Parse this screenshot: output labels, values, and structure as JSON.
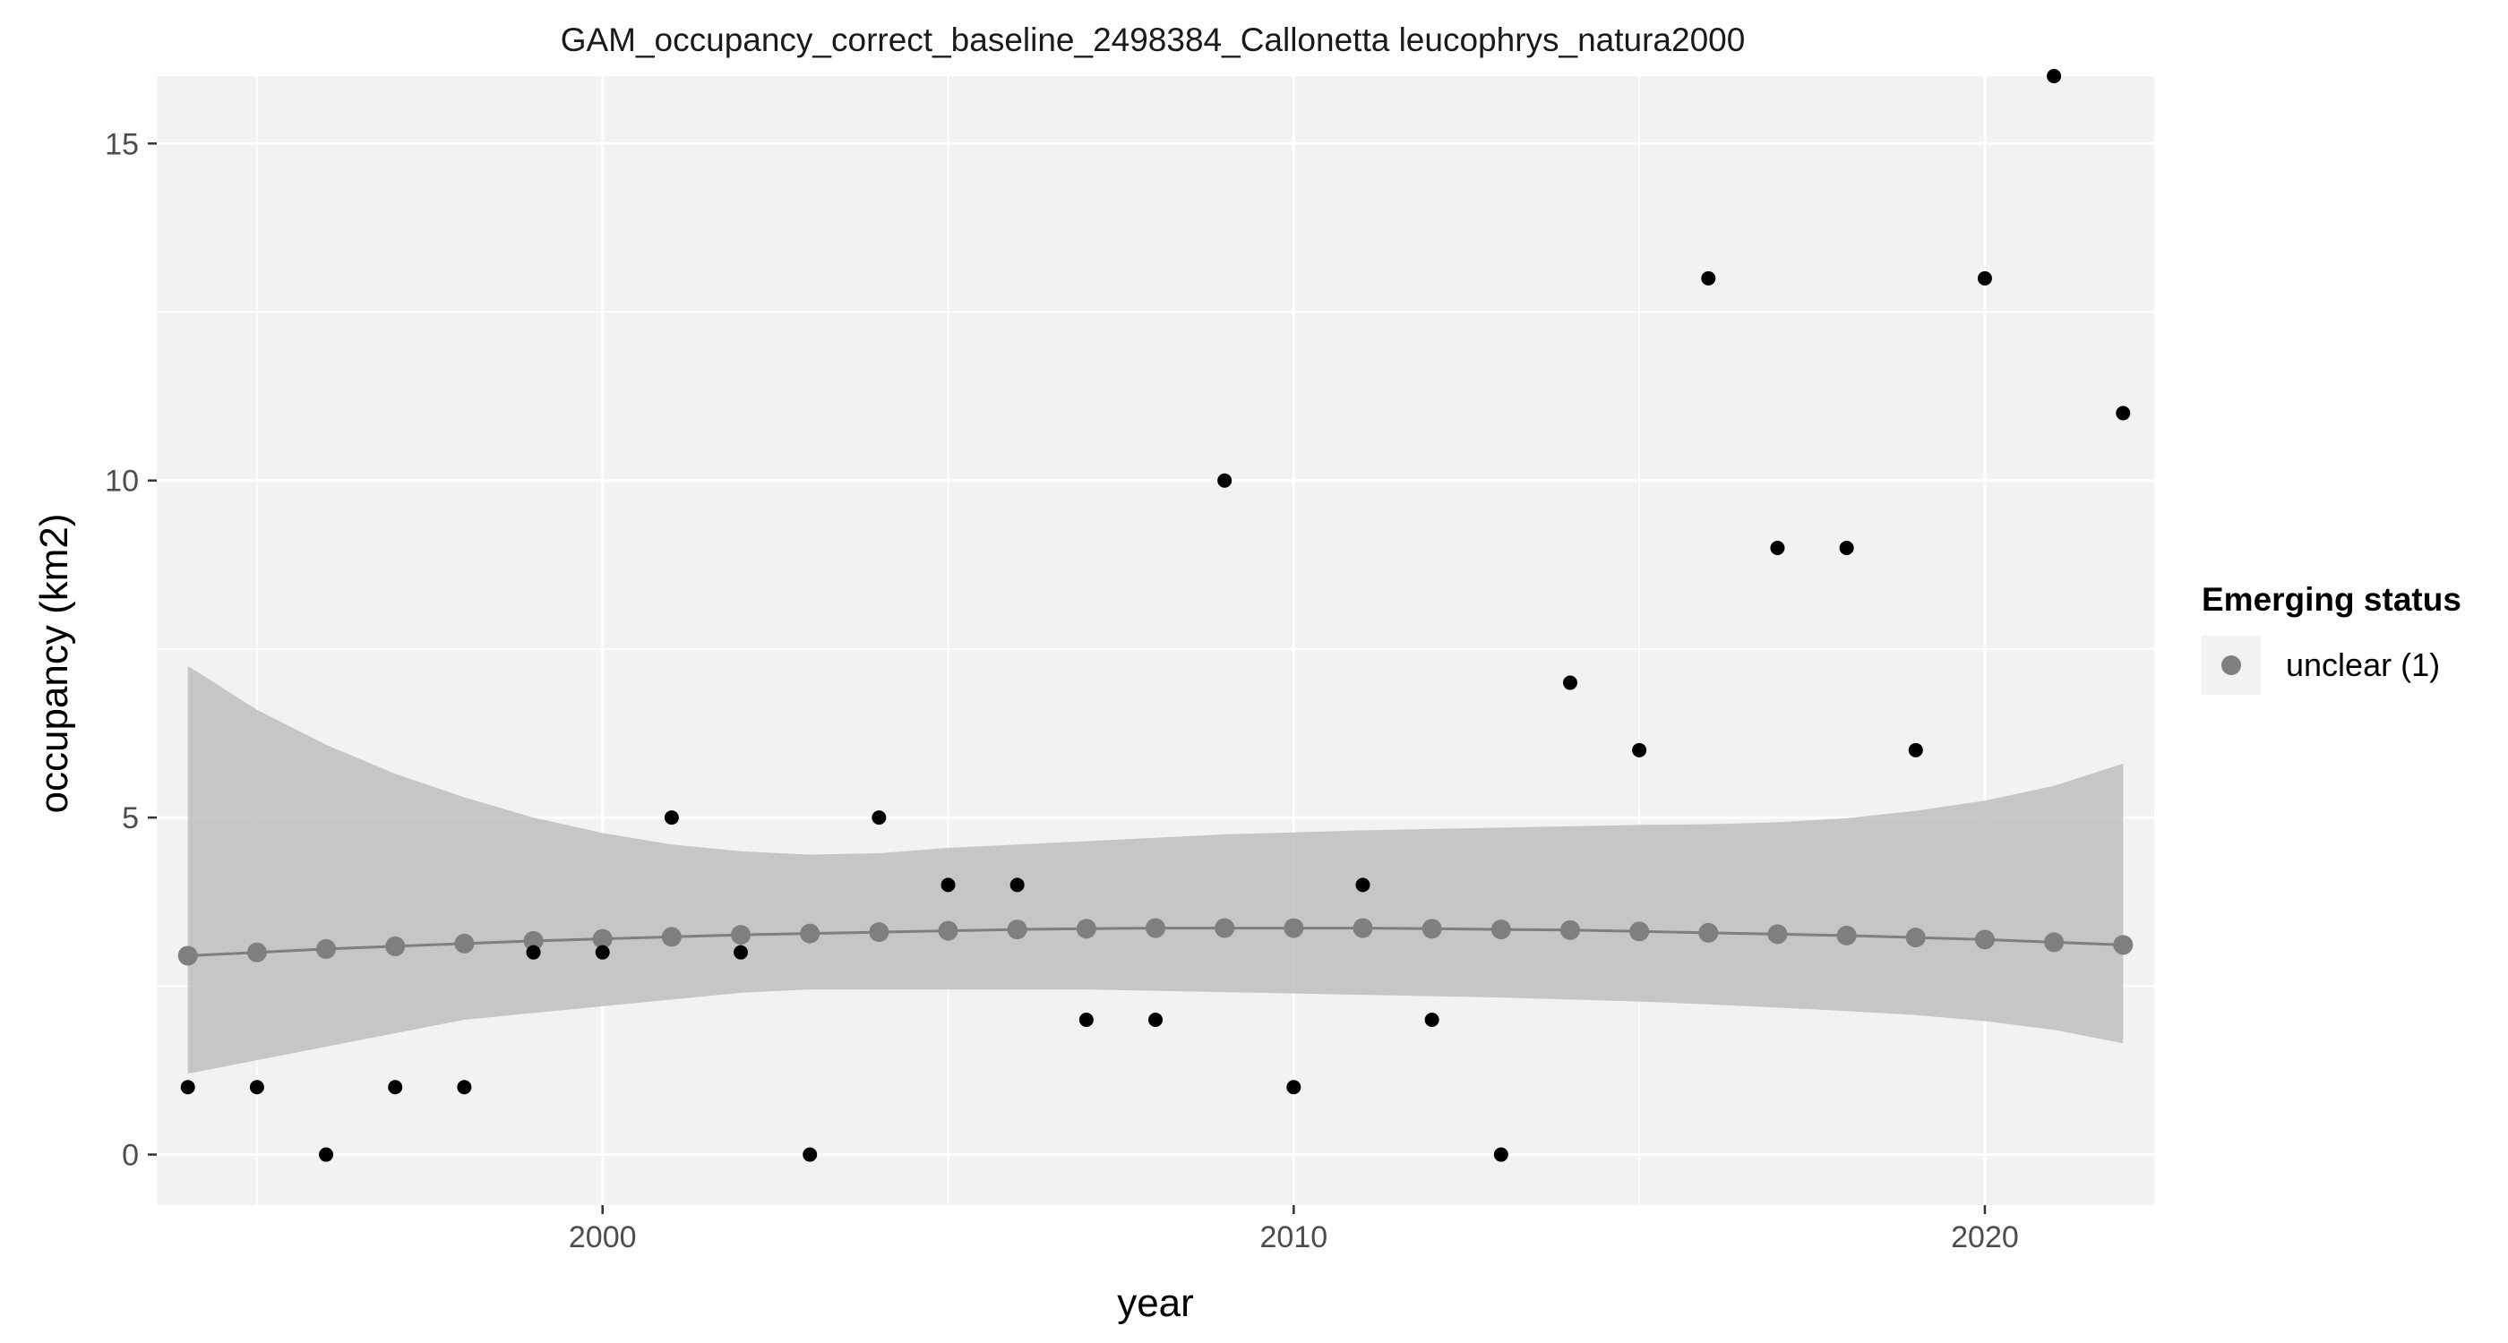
{
  "chart_data": {
    "type": "scatter",
    "title": "GAM_occupancy_correct_baseline_2498384_Callonetta leucophrys_natura2000",
    "xlabel": "year",
    "ylabel": "occupancy (km2)",
    "xlim": [
      1993.55,
      2022.45
    ],
    "ylim": [
      -0.75,
      16.0
    ],
    "x_ticks": [
      2000,
      2010,
      2020
    ],
    "x_tick_labels": [
      "2000",
      "2010",
      "2020"
    ],
    "y_ticks": [
      0,
      5,
      10,
      15
    ],
    "y_tick_labels": [
      "0",
      "5",
      "10",
      "15"
    ],
    "grid": true,
    "series": [
      {
        "name": "observed",
        "x": [
          1994,
          1995,
          1996,
          1997,
          1998,
          1999,
          2000,
          2001,
          2002,
          2003,
          2004,
          2005,
          2006,
          2007,
          2008,
          2009,
          2010,
          2011,
          2012,
          2013,
          2014,
          2015,
          2016,
          2017,
          2018,
          2019,
          2020,
          2021,
          2022
        ],
        "values": [
          1,
          1,
          0,
          1,
          1,
          3,
          3,
          5,
          3,
          0,
          5,
          4,
          4,
          2,
          2,
          10,
          1,
          4,
          2,
          0,
          7,
          6,
          13,
          9,
          9,
          6,
          13,
          16,
          11
        ],
        "color": "#000000"
      },
      {
        "name": "unclear (1)",
        "x": [
          1994,
          1995,
          1996,
          1997,
          1998,
          1999,
          2000,
          2001,
          2002,
          2003,
          2004,
          2005,
          2006,
          2007,
          2008,
          2009,
          2010,
          2011,
          2012,
          2013,
          2014,
          2015,
          2016,
          2017,
          2018,
          2019,
          2020,
          2021,
          2022
        ],
        "values": [
          2.95,
          3.0,
          3.05,
          3.09,
          3.13,
          3.17,
          3.2,
          3.23,
          3.26,
          3.28,
          3.3,
          3.32,
          3.34,
          3.35,
          3.36,
          3.36,
          3.36,
          3.36,
          3.35,
          3.34,
          3.33,
          3.31,
          3.29,
          3.27,
          3.25,
          3.22,
          3.19,
          3.15,
          3.11
        ],
        "lower": [
          1.2,
          1.4,
          1.6,
          1.8,
          2.0,
          2.1,
          2.2,
          2.3,
          2.4,
          2.45,
          2.45,
          2.45,
          2.45,
          2.45,
          2.43,
          2.41,
          2.39,
          2.37,
          2.35,
          2.33,
          2.3,
          2.27,
          2.23,
          2.18,
          2.13,
          2.07,
          1.98,
          1.85,
          1.65
        ],
        "upper": [
          7.25,
          6.6,
          6.08,
          5.65,
          5.3,
          5.0,
          4.77,
          4.6,
          4.5,
          4.45,
          4.47,
          4.55,
          4.6,
          4.65,
          4.7,
          4.75,
          4.78,
          4.81,
          4.83,
          4.85,
          4.87,
          4.89,
          4.9,
          4.93,
          4.99,
          5.1,
          5.25,
          5.47,
          5.8
        ],
        "color": "#7f7f7f",
        "ribbon_color": "#bebebe"
      }
    ],
    "legend": {
      "title": "Emerging status",
      "entries": [
        "unclear (1)"
      ],
      "position": "right"
    },
    "colors": {
      "panel": "#f2f2f2",
      "grid": "#ffffff",
      "points": "#000000",
      "trend": "#7f7f7f",
      "ribbon": "#bebebe"
    }
  }
}
